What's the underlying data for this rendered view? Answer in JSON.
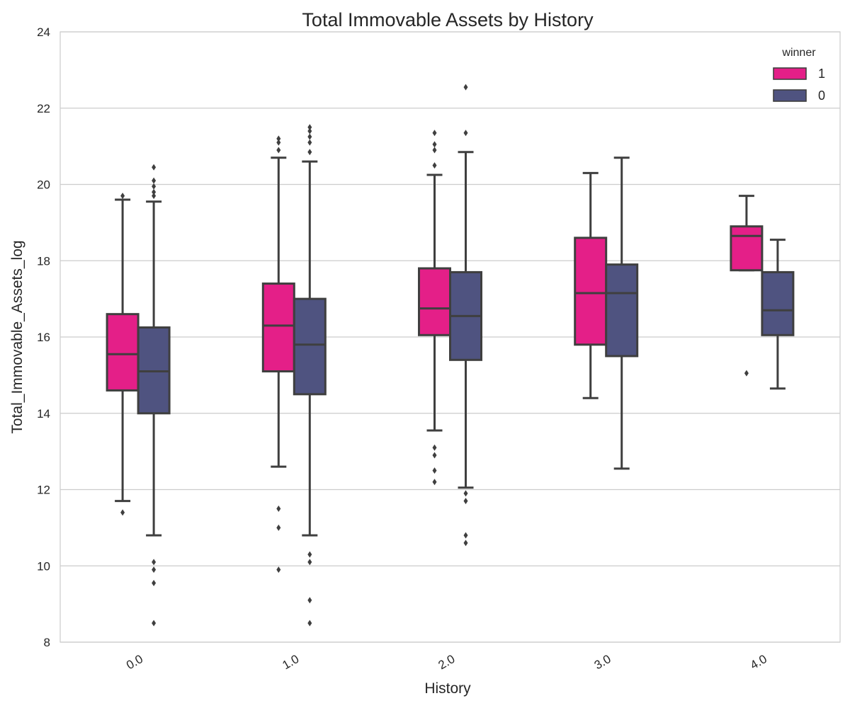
{
  "chart_data": {
    "type": "box",
    "title": "Total Immovable Assets by History",
    "xlabel": "History",
    "ylabel": "Total_Immovable_Assets_log",
    "categories": [
      "0.0",
      "1.0",
      "2.0",
      "3.0",
      "4.0"
    ],
    "ylim": [
      8,
      24
    ],
    "yticks": [
      8,
      10,
      12,
      14,
      16,
      18,
      20,
      22,
      24
    ],
    "grid": true,
    "legend": {
      "title": "winner",
      "placement": "top-right",
      "entries": [
        "1",
        "0"
      ]
    },
    "series": [
      {
        "name": "1",
        "color": "#e41f88",
        "boxes": [
          {
            "whislo": 11.7,
            "q1": 14.6,
            "med": 15.55,
            "q3": 16.6,
            "whishi": 19.6,
            "fliers": [
              11.4,
              19.7
            ]
          },
          {
            "whislo": 12.6,
            "q1": 15.1,
            "med": 16.3,
            "q3": 17.4,
            "whishi": 20.7,
            "fliers": [
              9.9,
              11.0,
              11.5,
              20.9,
              21.1,
              21.2
            ]
          },
          {
            "whislo": 13.55,
            "q1": 16.05,
            "med": 16.75,
            "q3": 17.8,
            "whishi": 20.25,
            "fliers": [
              12.2,
              12.5,
              12.9,
              13.1,
              20.5,
              20.9,
              21.05,
              21.35
            ]
          },
          {
            "whislo": 14.4,
            "q1": 15.8,
            "med": 17.15,
            "q3": 18.6,
            "whishi": 20.3,
            "fliers": []
          },
          {
            "whislo": 17.75,
            "q1": 17.75,
            "med": 18.65,
            "q3": 18.9,
            "whishi": 19.7,
            "fliers": [
              15.05
            ]
          }
        ]
      },
      {
        "name": "0",
        "color": "#4f5380",
        "boxes": [
          {
            "whislo": 10.8,
            "q1": 14.0,
            "med": 15.1,
            "q3": 16.25,
            "whishi": 19.55,
            "fliers": [
              8.5,
              9.55,
              9.9,
              10.1,
              19.7,
              19.8,
              19.95,
              20.1,
              20.45
            ]
          },
          {
            "whislo": 10.8,
            "q1": 14.5,
            "med": 15.8,
            "q3": 17.0,
            "whishi": 20.6,
            "fliers": [
              8.5,
              9.1,
              10.1,
              10.3,
              20.85,
              21.1,
              21.25,
              21.4,
              21.5
            ]
          },
          {
            "whislo": 12.05,
            "q1": 15.4,
            "med": 16.55,
            "q3": 17.7,
            "whishi": 20.85,
            "fliers": [
              10.6,
              10.8,
              11.7,
              11.9,
              21.35,
              22.55
            ]
          },
          {
            "whislo": 12.55,
            "q1": 15.5,
            "med": 17.15,
            "q3": 17.9,
            "whishi": 20.7,
            "fliers": []
          },
          {
            "whislo": 14.65,
            "q1": 16.05,
            "med": 16.7,
            "q3": 17.7,
            "whishi": 18.55,
            "fliers": []
          }
        ]
      }
    ]
  }
}
